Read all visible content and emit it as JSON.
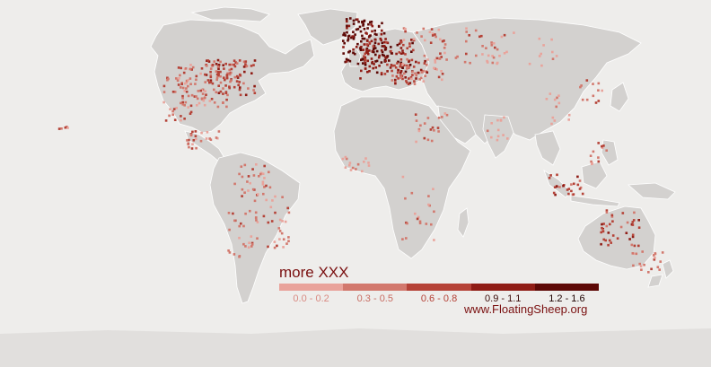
{
  "legend": {
    "title": "more XXX",
    "bins": [
      {
        "label": "0.0 - 0.2",
        "color": "#e9a39b",
        "text_color": "#d98a82"
      },
      {
        "label": "0.3 - 0.5",
        "color": "#d2786d",
        "text_color": "#c86c62"
      },
      {
        "label": "0.6 - 0.8",
        "color": "#b54237",
        "text_color": "#ffffff"
      },
      {
        "label": "0.9 - 1.1",
        "color": "#8f1c15",
        "text_color": "#3a0a08"
      },
      {
        "label": "1.2 - 1.6",
        "color": "#5d0906",
        "text_color": "#1e0302"
      }
    ]
  },
  "credit": "www.FloatingSheep.org",
  "colors": {
    "background": "#eeedeb",
    "land": "#d3d1cf",
    "coast": "#ffffff"
  }
}
